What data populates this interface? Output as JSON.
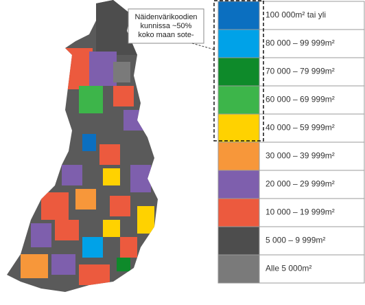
{
  "callout": {
    "lines": [
      "Näidenvärikoodien",
      "kunnissa ~50%",
      "koko maan sote-"
    ]
  },
  "legend": [
    {
      "label": "100 000m² tai yli",
      "color": "#0b6fc0"
    },
    {
      "label": "80 000 – 99 999m²",
      "color": "#00a2e8"
    },
    {
      "label": "70 000 – 79 999m²",
      "color": "#0e8a2a"
    },
    {
      "label": "60 000 – 69 999m²",
      "color": "#3db54a"
    },
    {
      "label": "40 000 – 59 999m²",
      "color": "#ffd200"
    },
    {
      "label": "30 000 – 39 999m²",
      "color": "#f7973a"
    },
    {
      "label": "20 000 – 29 999m²",
      "color": "#7e5fad"
    },
    {
      "label": "10 000 – 19 999m²",
      "color": "#ec5a3e"
    },
    {
      "label": "5 000 – 9 999m²",
      "color": "#4d4d4d"
    },
    {
      "label": "Alle 5 000m²",
      "color": "#7a7a7a"
    }
  ]
}
